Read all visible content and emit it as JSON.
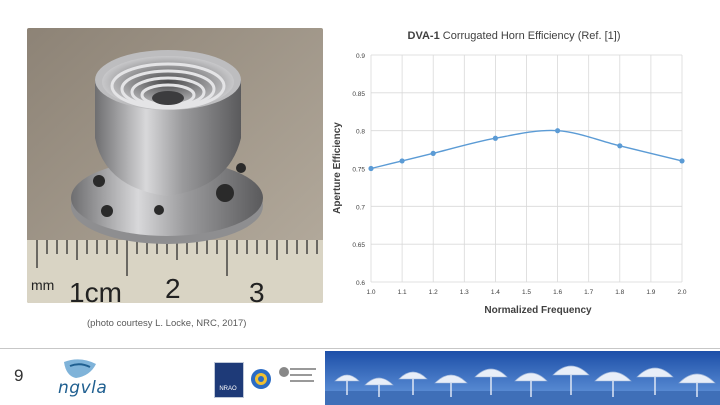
{
  "caption": "(photo courtesy L. Locke, NRC, 2017)",
  "slide_number": "9",
  "logos": {
    "ngvla": "ngvla",
    "nrao": "NRAO"
  },
  "ruler": {
    "mm": "mm",
    "one_cm": "1cm",
    "two": "2",
    "three": "3"
  },
  "colors": {
    "series": "#5b9bd5",
    "grid": "#d9d9d9",
    "banner": "#2a64c8"
  },
  "chart_data": {
    "type": "line",
    "title_bold": "DVA-1",
    "title_rest": " Corrugated Horn Efficiency (Ref. [1])",
    "xlabel": "Normalized Frequency",
    "ylabel": "Aperture Efficiency",
    "xlim": [
      1.0,
      2.0
    ],
    "ylim": [
      0.6,
      0.9
    ],
    "xticks": [
      "1.0",
      "1.1",
      "1.2",
      "1.3",
      "1.4",
      "1.5",
      "1.6",
      "1.7",
      "1.8",
      "1.9",
      "2.0"
    ],
    "yticks": [
      "0.6",
      "0.65",
      "0.7",
      "0.75",
      "0.8",
      "0.85",
      "0.9"
    ],
    "grid": true,
    "series": [
      {
        "x": [
          1.0,
          1.1,
          1.2,
          1.4,
          1.6,
          1.8,
          2.0
        ],
        "y": [
          0.75,
          0.76,
          0.77,
          0.79,
          0.8,
          0.78,
          0.76
        ]
      }
    ]
  }
}
